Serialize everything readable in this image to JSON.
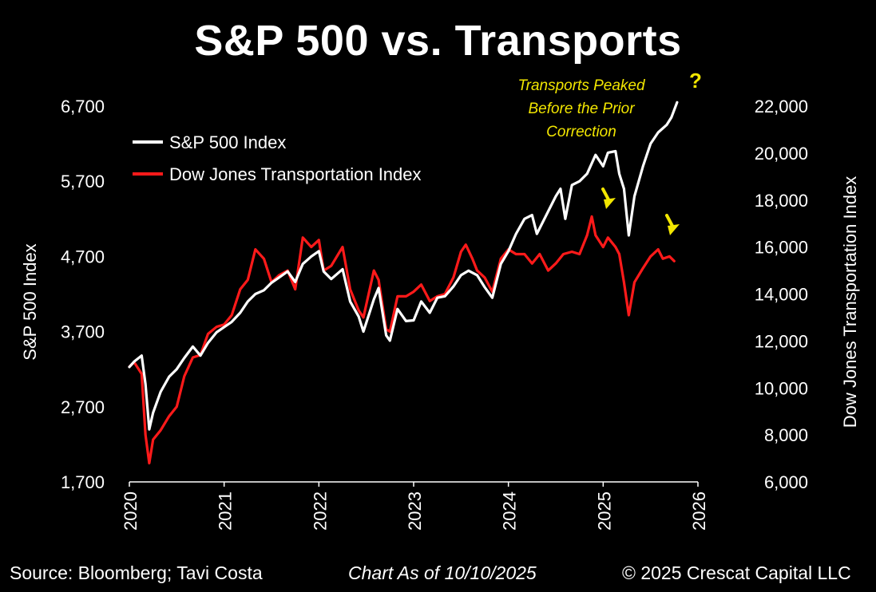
{
  "title": "S&P 500 vs. Transports",
  "footer": {
    "source": "Source: Bloomberg; Tavi Costa",
    "as_of": "Chart As of 10/10/2025",
    "copyright": "© 2025 Crescat Capital LLC"
  },
  "colors": {
    "background": "#000000",
    "sp500": "#ffffff",
    "transports": "#ff1a1a",
    "annotation": "#f2e600"
  },
  "chart_data": {
    "type": "line",
    "title": "S&P 500 vs. Transports",
    "x_ticks": [
      "2020",
      "2021",
      "2022",
      "2023",
      "2024",
      "2025",
      "2026"
    ],
    "xlim": [
      2020,
      2026
    ],
    "y_left": {
      "label": "S&P 500 Index",
      "ticks": [
        "1,700",
        "2,700",
        "3,700",
        "4,700",
        "5,700",
        "6,700"
      ],
      "range": [
        1700,
        6700
      ]
    },
    "y_right": {
      "label": "Dow Jones Transportation Index",
      "ticks": [
        "6,000",
        "8,000",
        "10,000",
        "12,000",
        "14,000",
        "16,000",
        "18,000",
        "20,000",
        "22,000"
      ],
      "range": [
        6000,
        22000
      ]
    },
    "legend": {
      "position": "top-left"
    },
    "grid": false,
    "series": [
      {
        "name": "S&P 500 Index",
        "axis": "left",
        "color": "#ffffff",
        "points": [
          [
            2020.0,
            3230
          ],
          [
            2020.05,
            3300
          ],
          [
            2020.13,
            3380
          ],
          [
            2020.17,
            3000
          ],
          [
            2020.21,
            2400
          ],
          [
            2020.25,
            2620
          ],
          [
            2020.33,
            2900
          ],
          [
            2020.42,
            3100
          ],
          [
            2020.5,
            3200
          ],
          [
            2020.58,
            3350
          ],
          [
            2020.67,
            3500
          ],
          [
            2020.75,
            3380
          ],
          [
            2020.83,
            3550
          ],
          [
            2020.92,
            3690
          ],
          [
            2021.0,
            3760
          ],
          [
            2021.08,
            3830
          ],
          [
            2021.17,
            3950
          ],
          [
            2021.25,
            4100
          ],
          [
            2021.33,
            4200
          ],
          [
            2021.42,
            4250
          ],
          [
            2021.5,
            4350
          ],
          [
            2021.58,
            4420
          ],
          [
            2021.67,
            4500
          ],
          [
            2021.75,
            4360
          ],
          [
            2021.83,
            4600
          ],
          [
            2021.92,
            4700
          ],
          [
            2022.0,
            4770
          ],
          [
            2022.05,
            4500
          ],
          [
            2022.13,
            4400
          ],
          [
            2022.25,
            4530
          ],
          [
            2022.33,
            4100
          ],
          [
            2022.42,
            3900
          ],
          [
            2022.47,
            3700
          ],
          [
            2022.58,
            4130
          ],
          [
            2022.63,
            4280
          ],
          [
            2022.71,
            3650
          ],
          [
            2022.75,
            3580
          ],
          [
            2022.83,
            4000
          ],
          [
            2022.92,
            3840
          ],
          [
            2023.0,
            3850
          ],
          [
            2023.08,
            4100
          ],
          [
            2023.17,
            3950
          ],
          [
            2023.25,
            4150
          ],
          [
            2023.33,
            4170
          ],
          [
            2023.42,
            4300
          ],
          [
            2023.5,
            4450
          ],
          [
            2023.58,
            4510
          ],
          [
            2023.67,
            4450
          ],
          [
            2023.75,
            4290
          ],
          [
            2023.83,
            4150
          ],
          [
            2023.92,
            4600
          ],
          [
            2024.0,
            4770
          ],
          [
            2024.08,
            5000
          ],
          [
            2024.17,
            5200
          ],
          [
            2024.25,
            5250
          ],
          [
            2024.3,
            5000
          ],
          [
            2024.42,
            5300
          ],
          [
            2024.5,
            5500
          ],
          [
            2024.55,
            5600
          ],
          [
            2024.6,
            5200
          ],
          [
            2024.67,
            5650
          ],
          [
            2024.75,
            5700
          ],
          [
            2024.83,
            5800
          ],
          [
            2024.92,
            6050
          ],
          [
            2025.0,
            5900
          ],
          [
            2025.05,
            6080
          ],
          [
            2025.13,
            6100
          ],
          [
            2025.17,
            5800
          ],
          [
            2025.22,
            5600
          ],
          [
            2025.27,
            4980
          ],
          [
            2025.33,
            5500
          ],
          [
            2025.42,
            5900
          ],
          [
            2025.5,
            6200
          ],
          [
            2025.58,
            6350
          ],
          [
            2025.67,
            6450
          ],
          [
            2025.72,
            6550
          ],
          [
            2025.78,
            6750
          ]
        ]
      },
      {
        "name": "Dow Jones Transportation Index",
        "axis": "right",
        "color": "#ff1a1a",
        "points": [
          [
            2020.0,
            10900
          ],
          [
            2020.05,
            11100
          ],
          [
            2020.13,
            10600
          ],
          [
            2020.17,
            8000
          ],
          [
            2020.21,
            6800
          ],
          [
            2020.25,
            7800
          ],
          [
            2020.33,
            8200
          ],
          [
            2020.42,
            8800
          ],
          [
            2020.5,
            9200
          ],
          [
            2020.58,
            10500
          ],
          [
            2020.67,
            11300
          ],
          [
            2020.75,
            11400
          ],
          [
            2020.83,
            12300
          ],
          [
            2020.92,
            12600
          ],
          [
            2021.0,
            12700
          ],
          [
            2021.08,
            13100
          ],
          [
            2021.17,
            14200
          ],
          [
            2021.25,
            14600
          ],
          [
            2021.33,
            15900
          ],
          [
            2021.42,
            15500
          ],
          [
            2021.5,
            14500
          ],
          [
            2021.58,
            14800
          ],
          [
            2021.67,
            15000
          ],
          [
            2021.75,
            14200
          ],
          [
            2021.83,
            16400
          ],
          [
            2021.92,
            16000
          ],
          [
            2022.0,
            16300
          ],
          [
            2022.05,
            15000
          ],
          [
            2022.13,
            15200
          ],
          [
            2022.25,
            16000
          ],
          [
            2022.33,
            14200
          ],
          [
            2022.42,
            13300
          ],
          [
            2022.47,
            13000
          ],
          [
            2022.58,
            15000
          ],
          [
            2022.63,
            14600
          ],
          [
            2022.71,
            12500
          ],
          [
            2022.75,
            12400
          ],
          [
            2022.83,
            13900
          ],
          [
            2022.92,
            13900
          ],
          [
            2023.0,
            14100
          ],
          [
            2023.08,
            14400
          ],
          [
            2023.17,
            13700
          ],
          [
            2023.25,
            13900
          ],
          [
            2023.33,
            14000
          ],
          [
            2023.42,
            14700
          ],
          [
            2023.5,
            15800
          ],
          [
            2023.55,
            16100
          ],
          [
            2023.62,
            15500
          ],
          [
            2023.67,
            15000
          ],
          [
            2023.75,
            14700
          ],
          [
            2023.83,
            14100
          ],
          [
            2023.92,
            15500
          ],
          [
            2024.0,
            15900
          ],
          [
            2024.08,
            15700
          ],
          [
            2024.17,
            15700
          ],
          [
            2024.25,
            15300
          ],
          [
            2024.33,
            15700
          ],
          [
            2024.42,
            15000
          ],
          [
            2024.5,
            15300
          ],
          [
            2024.58,
            15700
          ],
          [
            2024.67,
            15800
          ],
          [
            2024.75,
            15700
          ],
          [
            2024.83,
            16500
          ],
          [
            2024.88,
            17300
          ],
          [
            2024.92,
            16500
          ],
          [
            2025.0,
            16000
          ],
          [
            2025.05,
            16400
          ],
          [
            2025.13,
            16000
          ],
          [
            2025.17,
            15700
          ],
          [
            2025.22,
            14500
          ],
          [
            2025.27,
            13100
          ],
          [
            2025.33,
            14500
          ],
          [
            2025.42,
            15100
          ],
          [
            2025.5,
            15600
          ],
          [
            2025.58,
            15900
          ],
          [
            2025.63,
            15500
          ],
          [
            2025.7,
            15600
          ],
          [
            2025.75,
            15400
          ]
        ]
      }
    ],
    "annotations": [
      {
        "lines": [
          "Transports Peaked",
          "Before the Prior",
          "Correction"
        ]
      },
      {
        "text": "?"
      }
    ]
  }
}
